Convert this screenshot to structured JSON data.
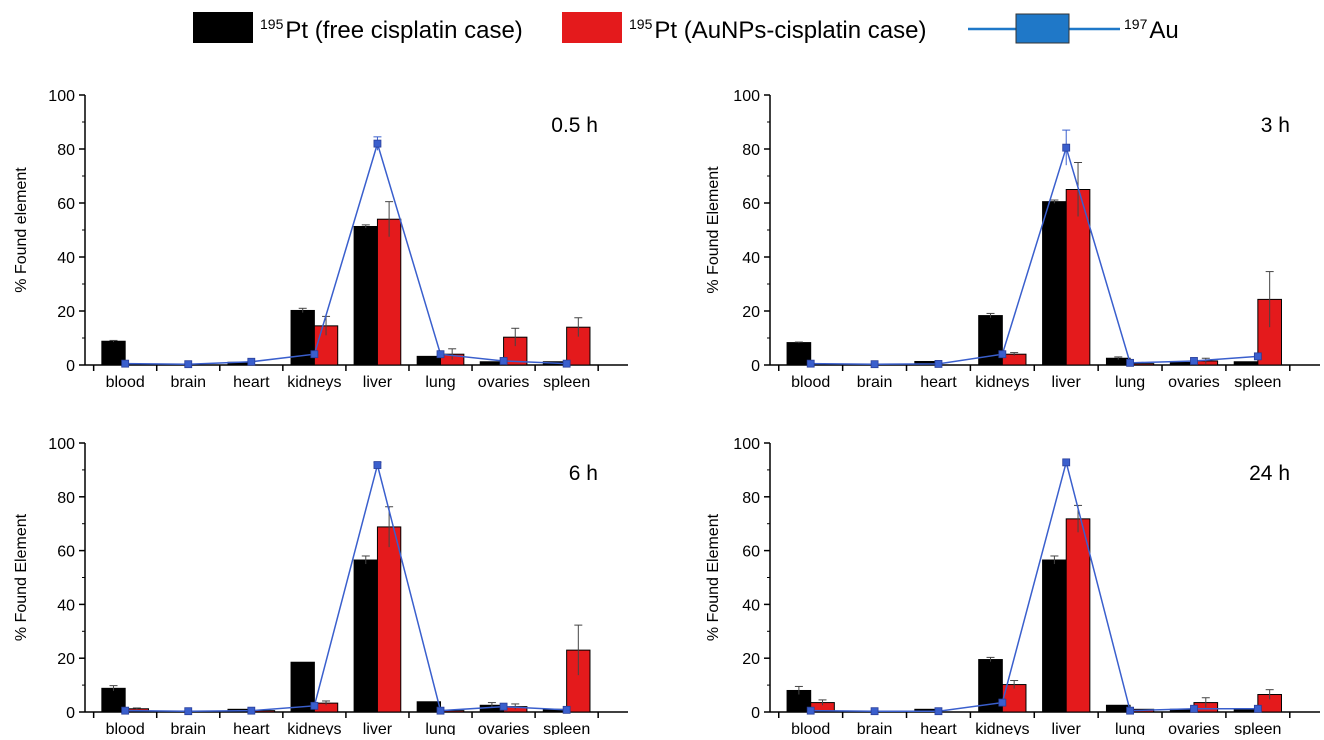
{
  "legend": {
    "items": [
      {
        "sup": "195",
        "label": "Pt (free cisplatin case)",
        "color": "#000000",
        "kind": "bar"
      },
      {
        "sup": "195",
        "label": "Pt (AuNPs-cisplatin case)",
        "color": "#e41a1c",
        "kind": "bar"
      },
      {
        "sup": "197",
        "label": "Au",
        "color": "#1f78c8",
        "kind": "line-box"
      }
    ]
  },
  "chart_data": [
    {
      "type": "bar",
      "title": "0.5 h",
      "ylabel": "% Found element",
      "ylim": [
        0,
        100
      ],
      "yticks": [
        0,
        20,
        40,
        60,
        80,
        100
      ],
      "categories": [
        "blood",
        "brain",
        "heart",
        "kidneys",
        "liver",
        "lung",
        "ovaries",
        "spleen"
      ],
      "series": [
        {
          "name": "195Pt (free cisplatin case)",
          "type": "bar",
          "color": "#000000",
          "values": [
            8.8,
            0.3,
            1.0,
            20.2,
            51.3,
            3.2,
            1.2,
            1.2
          ],
          "errors": [
            0.3,
            0,
            0,
            0.8,
            0.6,
            0,
            0,
            0
          ]
        },
        {
          "name": "195Pt (AuNPs-cisplatin case)",
          "type": "bar",
          "color": "#e41a1c",
          "values": [
            0,
            0,
            0,
            14.5,
            54.0,
            4.0,
            10.3,
            14.0
          ],
          "errors": [
            0,
            0,
            0,
            3.5,
            6.5,
            2.0,
            3.3,
            3.5
          ]
        },
        {
          "name": "197Au",
          "type": "line",
          "color": "#3a5fcd",
          "values": [
            0.5,
            0.3,
            1.2,
            4.0,
            82.0,
            4.0,
            1.5,
            0.5
          ],
          "errors": [
            0,
            0,
            0,
            0,
            2.5,
            0,
            0,
            0
          ]
        }
      ]
    },
    {
      "type": "bar",
      "title": "3 h",
      "ylabel": "% Found Element",
      "ylim": [
        0,
        100
      ],
      "yticks": [
        0,
        20,
        40,
        60,
        80,
        100
      ],
      "categories": [
        "blood",
        "brain",
        "heart",
        "kidneys",
        "liver",
        "lung",
        "ovaries",
        "spleen"
      ],
      "series": [
        {
          "name": "195Pt (free cisplatin case)",
          "type": "bar",
          "color": "#000000",
          "values": [
            8.3,
            0.3,
            1.3,
            18.3,
            60.5,
            2.5,
            1.0,
            1.2
          ],
          "errors": [
            0.2,
            0,
            0,
            0.8,
            0.6,
            0.5,
            0,
            0
          ]
        },
        {
          "name": "195Pt (AuNPs-cisplatin case)",
          "type": "bar",
          "color": "#e41a1c",
          "values": [
            0,
            0,
            0,
            4.0,
            65.0,
            0.5,
            1.5,
            24.3
          ],
          "errors": [
            0,
            0,
            0,
            0.6,
            10.0,
            0,
            1.0,
            10.3
          ]
        },
        {
          "name": "197Au",
          "type": "line",
          "color": "#3a5fcd",
          "values": [
            0.5,
            0.3,
            0.4,
            4.0,
            80.5,
            0.8,
            1.5,
            3.2
          ],
          "errors": [
            0,
            0,
            0,
            0,
            6.5,
            0,
            0,
            0
          ]
        }
      ]
    },
    {
      "type": "bar",
      "title": "6 h",
      "ylabel": "% Found Element",
      "ylim": [
        0,
        100
      ],
      "yticks": [
        0,
        20,
        40,
        60,
        80,
        100
      ],
      "categories": [
        "blood",
        "brain",
        "heart",
        "kidneys",
        "liver",
        "lung",
        "ovaries",
        "spleen"
      ],
      "series": [
        {
          "name": "195Pt (free cisplatin case)",
          "type": "bar",
          "color": "#000000",
          "values": [
            8.8,
            0.3,
            1.0,
            18.5,
            56.5,
            3.8,
            2.5,
            1.0
          ],
          "errors": [
            1.0,
            0,
            0,
            0,
            1.5,
            0,
            1.0,
            0
          ]
        },
        {
          "name": "195Pt (AuNPs-cisplatin case)",
          "type": "bar",
          "color": "#e41a1c",
          "values": [
            1.2,
            0.3,
            0.5,
            3.3,
            68.8,
            0.5,
            2.0,
            23.0
          ],
          "errors": [
            0.3,
            0,
            0,
            0.8,
            7.5,
            0,
            1.0,
            9.3
          ]
        },
        {
          "name": "197Au",
          "type": "line",
          "color": "#3a5fcd",
          "values": [
            0.5,
            0.3,
            0.5,
            2.3,
            91.8,
            0.5,
            2.0,
            0.8
          ],
          "errors": [
            0,
            0,
            0,
            0,
            1.0,
            0,
            0,
            0
          ]
        }
      ]
    },
    {
      "type": "bar",
      "title": "24 h",
      "ylabel": "% Found Element",
      "ylim": [
        0,
        100
      ],
      "yticks": [
        0,
        20,
        40,
        60,
        80,
        100
      ],
      "categories": [
        "blood",
        "brain",
        "heart",
        "kidneys",
        "liver",
        "lung",
        "ovaries",
        "spleen"
      ],
      "series": [
        {
          "name": "195Pt (free cisplatin case)",
          "type": "bar",
          "color": "#000000",
          "values": [
            8.0,
            0.3,
            1.0,
            19.5,
            56.5,
            2.5,
            1.0,
            1.0
          ],
          "errors": [
            1.5,
            0,
            0,
            0.8,
            1.5,
            0,
            0,
            0
          ]
        },
        {
          "name": "195Pt (AuNPs-cisplatin case)",
          "type": "bar",
          "color": "#e41a1c",
          "values": [
            3.5,
            0,
            0,
            10.2,
            71.8,
            1.0,
            3.5,
            6.5
          ],
          "errors": [
            1.0,
            0,
            0,
            1.5,
            5.0,
            0,
            1.8,
            1.8
          ]
        },
        {
          "name": "197Au",
          "type": "line",
          "color": "#3a5fcd",
          "values": [
            0.5,
            0.3,
            0.3,
            3.5,
            92.8,
            0.5,
            1.2,
            1.2
          ],
          "errors": [
            0,
            0,
            0,
            0,
            0,
            0,
            0,
            0
          ]
        }
      ]
    }
  ]
}
